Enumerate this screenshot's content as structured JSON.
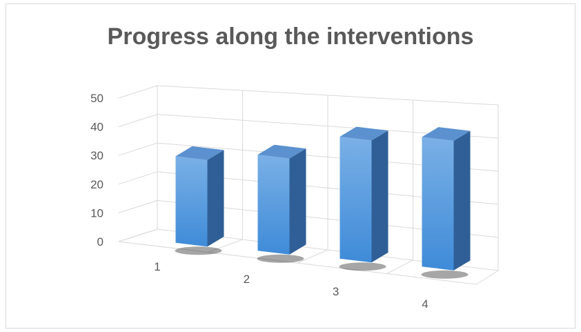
{
  "chart_data": {
    "type": "bar",
    "style": "3d-column",
    "title": "Progress along the interventions",
    "categories": [
      "1",
      "2",
      "3",
      "4"
    ],
    "values": [
      29,
      31,
      38,
      39
    ],
    "ylim": [
      0,
      50
    ],
    "yticks": [
      "0",
      "10",
      "20",
      "30",
      "40",
      "50"
    ],
    "grid": true,
    "legend": "none",
    "colors": {
      "bar_front_top": "#7ab0e6",
      "bar_front_bottom": "#3f8bd8",
      "bar_side": "#2f5f96",
      "bar_top": "#5b91cf",
      "grid": "#d9d9d9",
      "text": "#595959"
    }
  }
}
